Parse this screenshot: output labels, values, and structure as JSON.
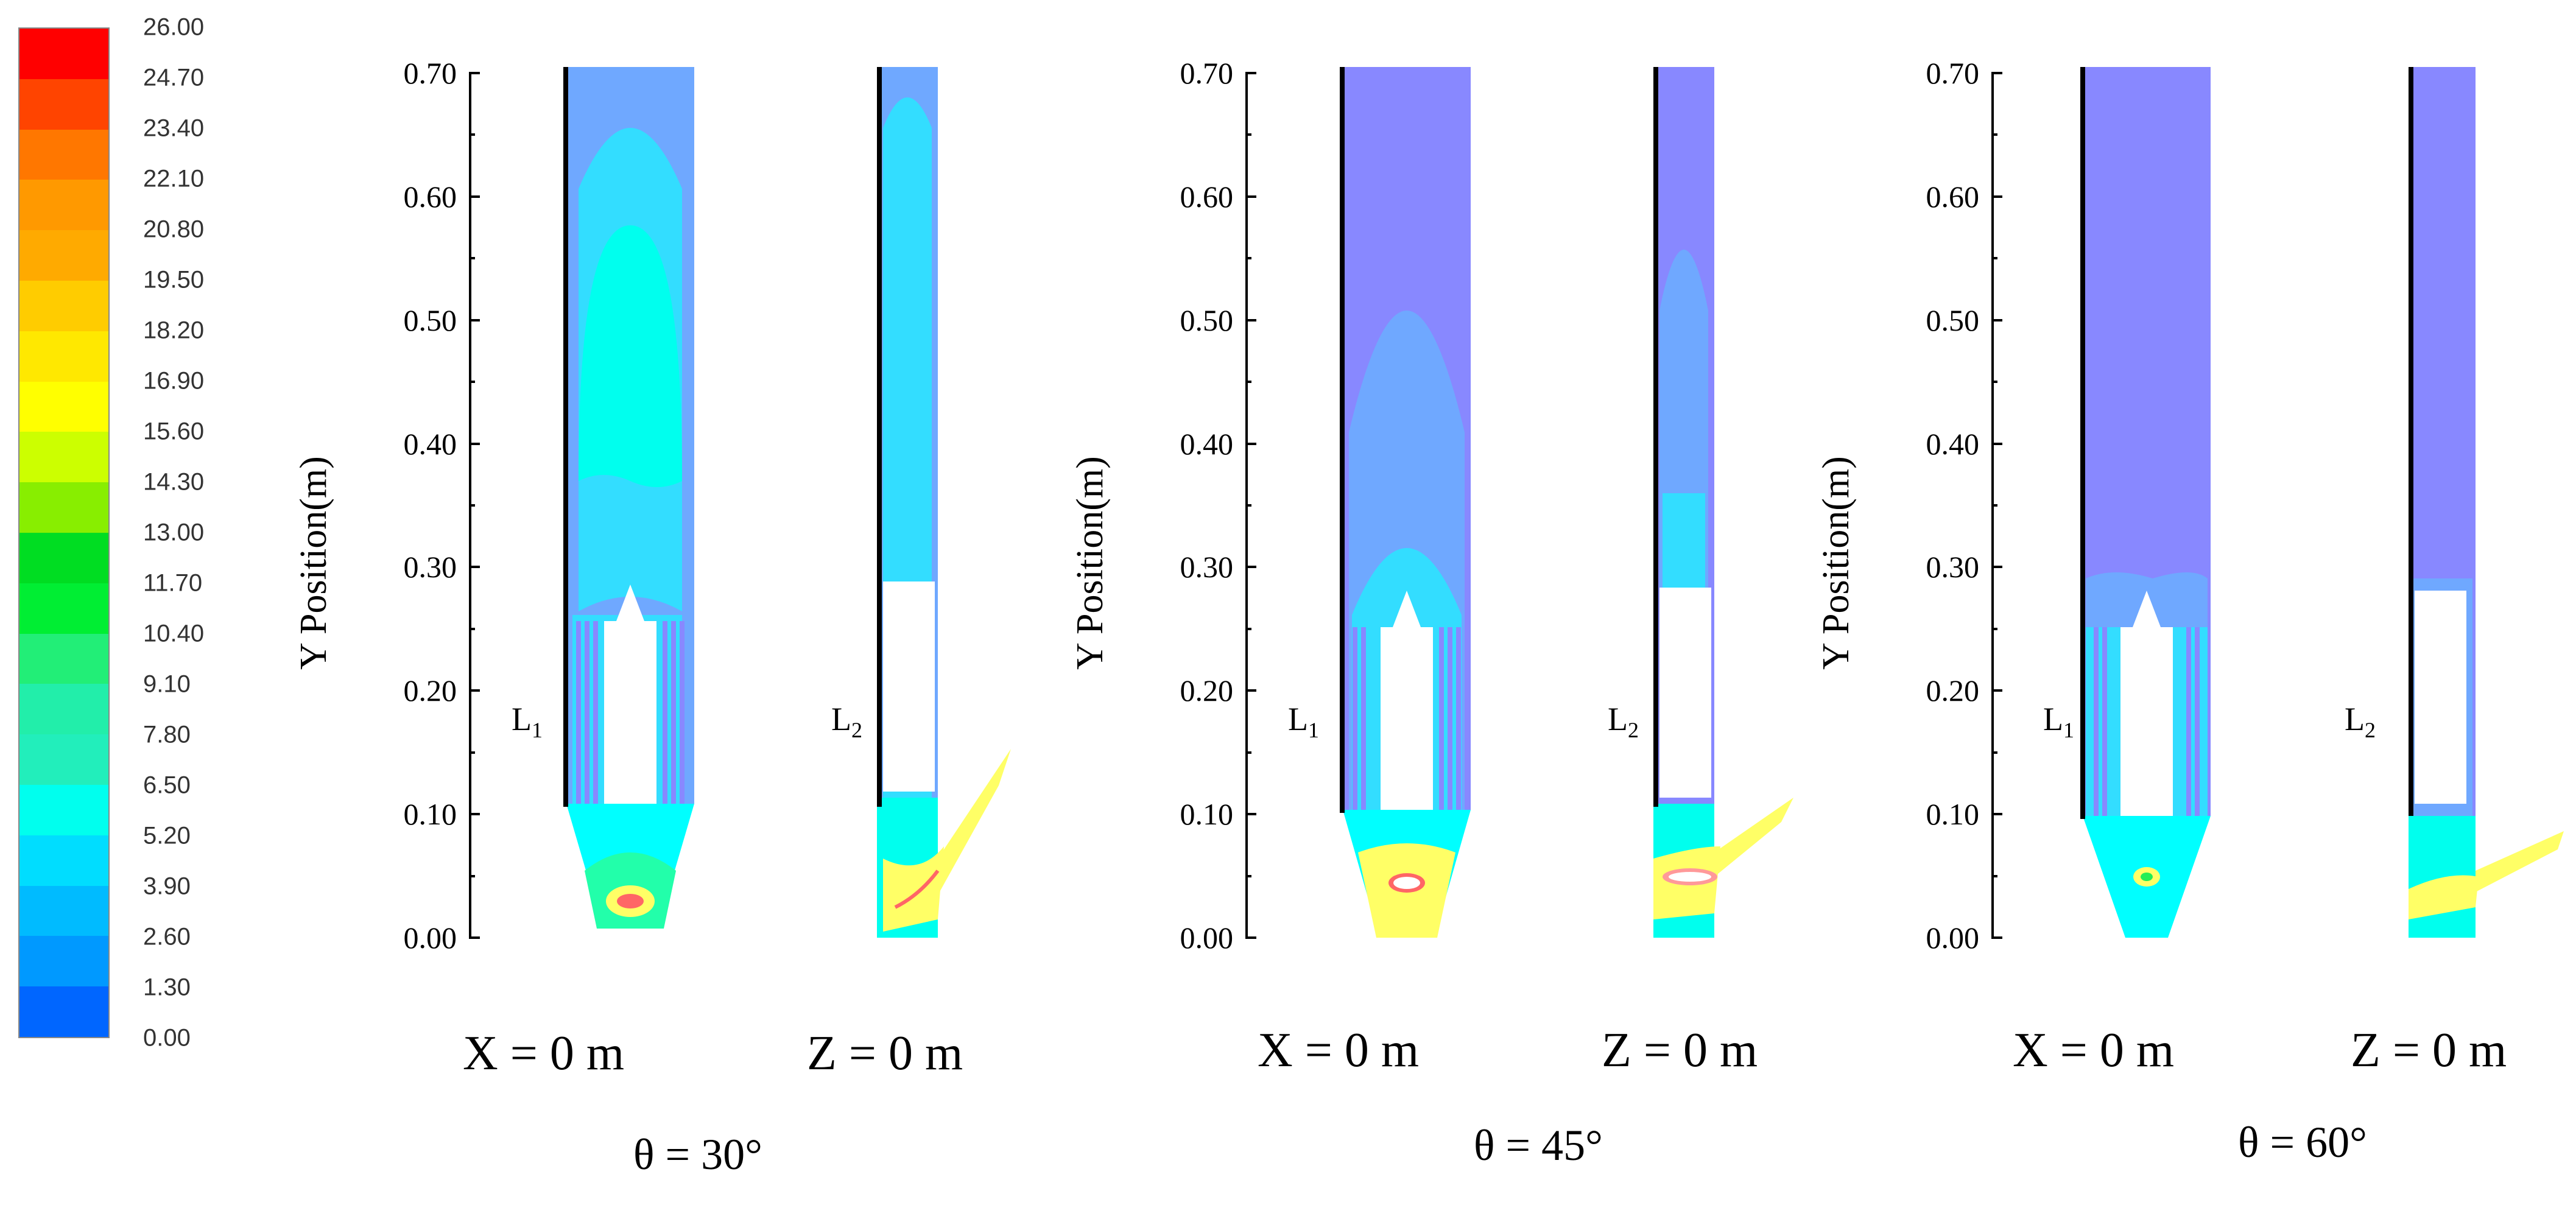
{
  "legend": {
    "values": [
      "26.00",
      "24.70",
      "23.40",
      "22.10",
      "20.80",
      "19.50",
      "18.20",
      "16.90",
      "15.60",
      "14.30",
      "13.00",
      "11.70",
      "10.40",
      "9.10",
      "7.80",
      "6.50",
      "5.20",
      "3.90",
      "2.60",
      "1.30",
      "0.00"
    ],
    "colors": [
      "#ff0000",
      "#ff4400",
      "#ff7700",
      "#ff9900",
      "#ffaa00",
      "#ffcc00",
      "#ffe800",
      "#ffff00",
      "#ccff00",
      "#88ee00",
      "#00dd22",
      "#00ee33",
      "#22ee77",
      "#22eeaa",
      "#22eebb",
      "#00ffee",
      "#00ddff",
      "#00bbff",
      "#0099ff",
      "#0066ff",
      "#0022ff"
    ]
  },
  "y_axis": {
    "label": "Y Position(m)",
    "ticks": [
      "0.70",
      "0.60",
      "0.50",
      "0.40",
      "0.30",
      "0.20",
      "0.10",
      "0.00"
    ]
  },
  "panels": [
    {
      "theta": "θ = 30°",
      "x_label": "X = 0 m",
      "z_label": "Z = 0 m",
      "l1": "L",
      "l1_sub": "1",
      "l2": "L",
      "l2_sub": "2"
    },
    {
      "theta": "θ = 45°",
      "x_label": "X = 0 m",
      "z_label": "Z = 0 m",
      "l1": "L",
      "l1_sub": "1",
      "l2": "L",
      "l2_sub": "2"
    },
    {
      "theta": "θ = 60°",
      "x_label": "X = 0 m",
      "z_label": "Z = 0 m",
      "l1": "L",
      "l1_sub": "1",
      "l2": "L",
      "l2_sub": "2"
    }
  ],
  "colors": {
    "violet": "#8888ff",
    "blue_light": "#6fa8ff",
    "cyan_mid": "#33ddff",
    "cyan": "#00ffff",
    "aqua": "#22ffee",
    "yellow": "#ffff66",
    "orange": "#ffcc66",
    "red": "#ff3333"
  }
}
